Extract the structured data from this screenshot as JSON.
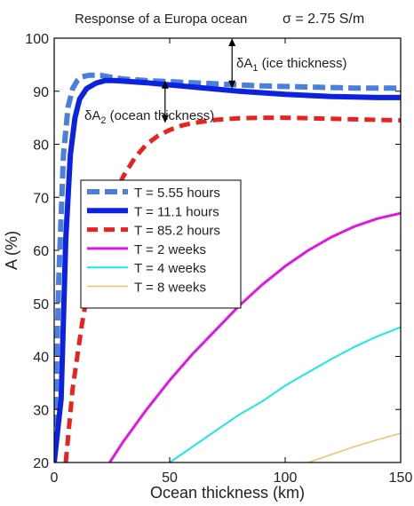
{
  "chart_data": {
    "type": "line",
    "title": "Response of a Europa ocean",
    "title_sigma": "σ = 2.75 S/m",
    "xlabel": "Ocean thickness (km)",
    "ylabel": "A (%)",
    "xlim": [
      0,
      150
    ],
    "ylim": [
      20,
      100
    ],
    "xticks": [
      0,
      50,
      100,
      150
    ],
    "yticks": [
      20,
      30,
      40,
      50,
      60,
      70,
      80,
      90,
      100
    ],
    "grid": false,
    "legend_position": "middle-left",
    "annotations": [
      {
        "id": "dA1",
        "label": "δA",
        "sub": "1",
        "rest": " (ice thickness)",
        "arrow_x": 77,
        "arrow_y": [
          90.5,
          100
        ]
      },
      {
        "id": "dA2",
        "label": "δA",
        "sub": "2",
        "rest": " (ocean thickness)",
        "arrow_x": 48,
        "arrow_y": [
          84,
          92
        ]
      }
    ],
    "series": [
      {
        "name": "T = 5.55 hours",
        "color": "#4a7fdc",
        "dash": "14 6",
        "width": 6,
        "x": [
          0,
          2,
          4,
          6,
          8,
          10,
          12,
          15,
          20,
          25,
          30,
          40,
          50,
          60,
          70,
          80,
          90,
          100,
          110,
          120,
          130,
          140,
          150
        ],
        "y": [
          20,
          55,
          78,
          87,
          90.5,
          92,
          92.7,
          93,
          93,
          92.6,
          92.3,
          92,
          91.8,
          91.6,
          91.4,
          91.2,
          91,
          90.9,
          90.8,
          90.7,
          90.6,
          90.6,
          90.6
        ]
      },
      {
        "name": "T = 11.1 hours",
        "color": "#0b22e0",
        "dash": "",
        "width": 6,
        "x": [
          0,
          3,
          5,
          7,
          9,
          11,
          14,
          18,
          22,
          26,
          30,
          40,
          50,
          60,
          70,
          80,
          90,
          100,
          110,
          120,
          130,
          140,
          150
        ],
        "y": [
          20,
          32,
          62,
          78,
          85,
          88.5,
          90.5,
          91.5,
          92,
          92,
          91.9,
          91.6,
          91.2,
          90.8,
          90.4,
          90,
          89.7,
          89.4,
          89.2,
          89,
          88.9,
          88.8,
          88.8
        ]
      },
      {
        "name": "T = 85.2 hours",
        "color": "#e8221f",
        "dash": "12 7",
        "width": 5,
        "x": [
          5,
          8,
          12,
          16,
          20,
          25,
          30,
          35,
          40,
          45,
          50,
          55,
          60,
          70,
          80,
          90,
          100,
          110,
          120,
          130,
          140,
          150
        ],
        "y": [
          20,
          34,
          46,
          56,
          63,
          69.5,
          74,
          77.5,
          80,
          81.6,
          82.7,
          83.5,
          84,
          84.6,
          84.9,
          85,
          85,
          84.9,
          84.8,
          84.7,
          84.6,
          84.5
        ]
      },
      {
        "name": "T = 2 weeks",
        "color": "#e216e2",
        "dash": "",
        "width": 3,
        "x": [
          24,
          30,
          40,
          50,
          60,
          70,
          80,
          90,
          100,
          110,
          120,
          130,
          140,
          150
        ],
        "y": [
          20,
          24,
          30,
          35.5,
          40.5,
          45,
          49.5,
          53.5,
          57,
          60,
          62.5,
          64.5,
          66,
          67
        ]
      },
      {
        "name": "T = 4 weeks",
        "color": "#1ae8e8",
        "dash": "",
        "width": 2,
        "x": [
          50,
          60,
          70,
          80,
          90,
          100,
          110,
          120,
          130,
          140,
          150
        ],
        "y": [
          20,
          23,
          26,
          29,
          31.5,
          34.5,
          37,
          39.5,
          41.8,
          43.8,
          45.5
        ]
      },
      {
        "name": "T = 8 weeks",
        "color": "#f0c070",
        "dash": "",
        "width": 1.5,
        "x": [
          110,
          120,
          130,
          140,
          150
        ],
        "y": [
          20,
          21.5,
          23,
          24.3,
          25.5
        ]
      }
    ]
  }
}
